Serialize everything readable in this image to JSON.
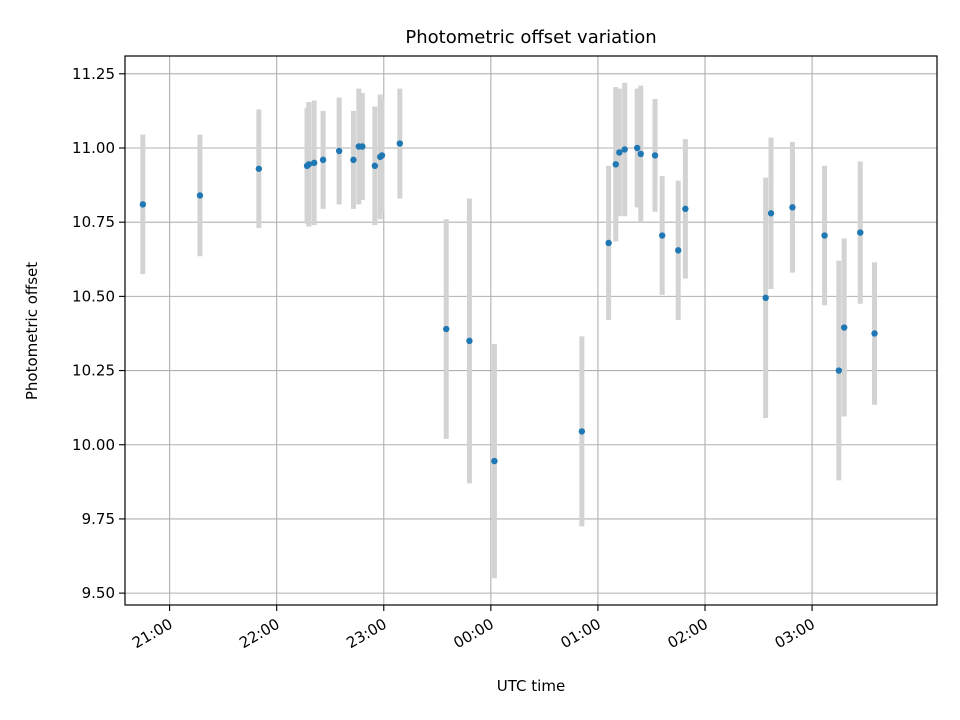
{
  "chart_data": {
    "type": "scatter",
    "title": "Photometric offset variation",
    "xlabel": "UTC time",
    "ylabel": "Photometric offset",
    "grid": true,
    "x_unit": "UTC time",
    "x_ticks": [
      "21:00",
      "22:00",
      "23:00",
      "00:00",
      "01:00",
      "02:00",
      "03:00"
    ],
    "x_tick_values": [
      "21:00",
      "22:00",
      "23:00",
      "00:00",
      "01:00",
      "02:00",
      "03:00"
    ],
    "xlim": [
      "20:35",
      "04:10"
    ],
    "y_ticks": [
      "9.50",
      "9.75",
      "10.00",
      "10.25",
      "10.50",
      "10.75",
      "11.00",
      "11.25"
    ],
    "y_tick_values": [
      9.5,
      9.75,
      10.0,
      10.25,
      10.5,
      10.75,
      11.0,
      11.25
    ],
    "ylim": [
      9.46,
      11.31
    ],
    "colors": {
      "point": "#1f77b4",
      "errorbar": "#d3d3d3",
      "grid": "#b0b0b0"
    },
    "series": [
      {
        "points": [
          {
            "x": "20:45",
            "y": 10.81,
            "err": 0.235
          },
          {
            "x": "21:17",
            "y": 10.84,
            "err": 0.205
          },
          {
            "x": "21:50",
            "y": 10.93,
            "err": 0.2
          },
          {
            "x": "22:17",
            "y": 10.94,
            "err": 0.195
          },
          {
            "x": "22:18",
            "y": 10.945,
            "err": 0.21
          },
          {
            "x": "22:21",
            "y": 10.95,
            "err": 0.21
          },
          {
            "x": "22:26",
            "y": 10.96,
            "err": 0.165
          },
          {
            "x": "22:35",
            "y": 10.99,
            "err": 0.18
          },
          {
            "x": "22:43",
            "y": 10.96,
            "err": 0.165
          },
          {
            "x": "22:46",
            "y": 11.005,
            "err": 0.195
          },
          {
            "x": "22:48",
            "y": 11.005,
            "err": 0.18
          },
          {
            "x": "22:55",
            "y": 10.94,
            "err": 0.2
          },
          {
            "x": "22:58",
            "y": 10.97,
            "err": 0.21
          },
          {
            "x": "22:59",
            "y": 10.975,
            "err": 0.19
          },
          {
            "x": "23:09",
            "y": 11.015,
            "err": 0.185
          },
          {
            "x": "23:35",
            "y": 10.39,
            "err": 0.37
          },
          {
            "x": "23:48",
            "y": 10.35,
            "err": 0.48
          },
          {
            "x": "00:02",
            "y": 9.945,
            "err": 0.395
          },
          {
            "x": "00:51",
            "y": 10.045,
            "err": 0.32
          },
          {
            "x": "01:06",
            "y": 10.68,
            "err": 0.26
          },
          {
            "x": "01:10",
            "y": 10.945,
            "err": 0.26
          },
          {
            "x": "01:12",
            "y": 10.985,
            "err": 0.215
          },
          {
            "x": "01:15",
            "y": 10.995,
            "err": 0.225
          },
          {
            "x": "01:22",
            "y": 11.0,
            "err": 0.2
          },
          {
            "x": "01:24",
            "y": 10.98,
            "err": 0.23
          },
          {
            "x": "01:32",
            "y": 10.975,
            "err": 0.19
          },
          {
            "x": "01:36",
            "y": 10.705,
            "err": 0.2
          },
          {
            "x": "01:45",
            "y": 10.655,
            "err": 0.235
          },
          {
            "x": "01:49",
            "y": 10.795,
            "err": 0.235
          },
          {
            "x": "02:34",
            "y": 10.495,
            "err": 0.405
          },
          {
            "x": "02:37",
            "y": 10.78,
            "err": 0.255
          },
          {
            "x": "02:49",
            "y": 10.8,
            "err": 0.22
          },
          {
            "x": "03:07",
            "y": 10.705,
            "err": 0.235
          },
          {
            "x": "03:15",
            "y": 10.25,
            "err": 0.37
          },
          {
            "x": "03:18",
            "y": 10.395,
            "err": 0.3
          },
          {
            "x": "03:27",
            "y": 10.715,
            "err": 0.24
          },
          {
            "x": "03:35",
            "y": 10.375,
            "err": 0.24
          }
        ]
      }
    ]
  }
}
